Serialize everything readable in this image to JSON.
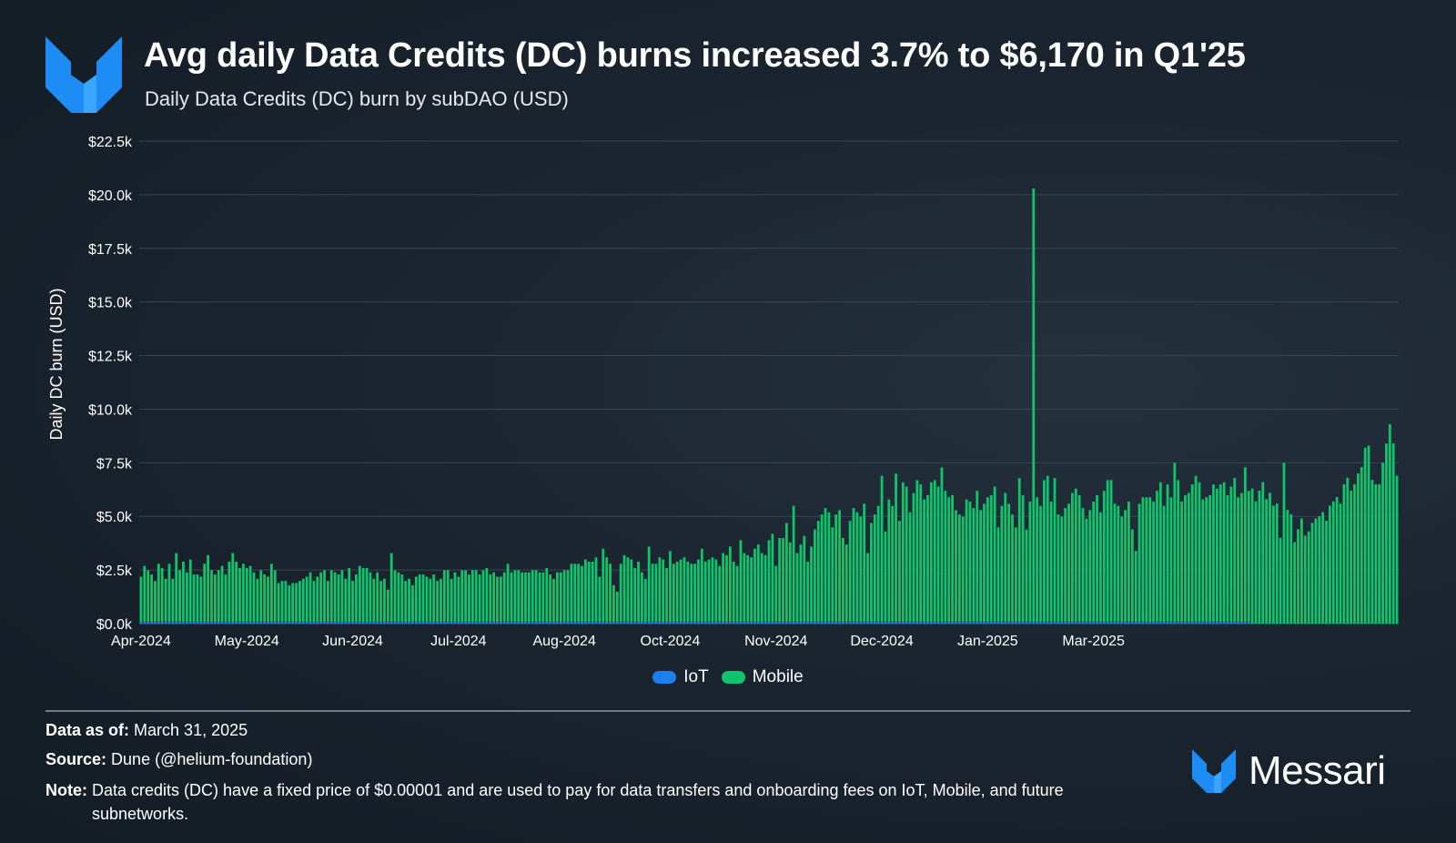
{
  "header": {
    "title": "Avg daily Data Credits (DC) burns increased 3.7% to $6,170 in Q1'25",
    "subtitle": "Daily Data Credits (DC) burn by subDAO (USD)"
  },
  "colors": {
    "mobile": "#10c46c",
    "iot": "#1e7ff0",
    "brand_blue": "#1e8cf5",
    "grid": "#3a4651"
  },
  "icons": {
    "logo": "messari-logo-icon"
  },
  "chart_data": {
    "type": "bar",
    "stacked": true,
    "ylabel": "Daily DC burn (USD)",
    "ylim": [
      0,
      22500
    ],
    "y_ticks": [
      0,
      2500,
      5000,
      7500,
      10000,
      12500,
      15000,
      17500,
      20000,
      22500
    ],
    "y_tick_labels": [
      "$0.0k",
      "$2.5k",
      "$5.0k",
      "$7.5k",
      "$10.0k",
      "$12.5k",
      "$15.0k",
      "$17.5k",
      "$20.0k",
      "$22.5k"
    ],
    "x_tick_labels": [
      "Apr-2024",
      "May-2024",
      "Jun-2024",
      "Jul-2024",
      "Aug-2024",
      "Oct-2024",
      "Nov-2024",
      "Dec-2024",
      "Jan-2025",
      "Mar-2025"
    ],
    "x_tick_day_index": [
      0,
      30,
      60,
      90,
      120,
      150,
      180,
      210,
      240,
      270
    ],
    "legend": [
      "IoT",
      "Mobile"
    ],
    "legend_position": "bottom-center",
    "grid": true,
    "start_date": "2024-04-01",
    "series": [
      {
        "name": "IoT",
        "values": [
          90,
          90,
          90,
          90,
          90,
          90,
          90,
          90,
          90,
          90,
          90,
          90,
          90,
          90,
          90,
          90,
          90,
          90,
          90,
          90,
          90,
          90,
          90,
          90,
          90,
          90,
          90,
          90,
          90,
          90,
          90,
          90,
          90,
          90,
          90,
          90,
          90,
          90,
          90,
          90,
          90,
          90,
          90,
          90,
          90,
          90,
          90,
          90,
          90,
          90,
          90,
          90,
          90,
          90,
          90,
          90,
          90,
          90,
          90,
          90,
          90,
          90,
          90,
          90,
          90,
          90,
          90,
          90,
          90,
          90,
          90,
          90,
          90,
          90,
          90,
          90,
          90,
          90,
          90,
          90,
          90,
          90,
          90,
          90,
          90,
          90,
          90,
          90,
          90,
          90,
          90,
          90,
          90,
          90,
          90,
          90,
          90,
          90,
          90,
          90,
          90,
          90,
          90,
          90,
          90,
          90,
          90,
          90,
          90,
          90,
          90,
          90,
          90,
          90,
          90,
          90,
          90,
          90,
          90,
          90,
          90,
          90,
          90,
          90,
          90,
          90,
          90,
          90,
          90,
          90,
          90,
          90,
          90,
          90,
          90,
          90,
          90,
          90,
          90,
          90,
          90,
          90,
          90,
          90,
          90,
          90,
          90,
          90,
          90,
          90,
          90,
          90,
          90,
          90,
          90,
          90,
          90,
          90,
          90,
          90,
          90,
          90,
          90,
          90,
          90,
          90,
          90,
          90,
          90,
          90,
          90,
          90,
          90,
          90,
          90,
          90,
          90,
          90,
          90,
          90,
          90,
          90,
          90,
          90,
          90,
          90,
          90,
          90,
          90,
          90,
          90,
          90,
          90,
          90,
          90,
          90,
          90,
          90,
          90,
          90,
          90,
          90,
          90,
          90,
          90,
          90,
          90,
          90,
          90,
          90,
          90,
          90,
          90,
          90,
          90,
          90,
          90,
          90,
          90,
          90,
          90,
          90,
          90,
          90,
          90,
          90,
          90,
          90,
          90,
          90,
          90,
          90,
          90,
          90,
          90,
          90,
          90,
          90,
          90,
          90,
          90,
          90,
          90,
          90,
          90,
          90,
          90,
          90,
          90,
          90,
          90,
          90,
          90,
          90,
          90,
          90,
          90,
          90,
          90,
          90,
          90,
          90,
          90,
          90,
          90,
          90,
          90,
          90,
          90,
          90,
          90,
          90,
          90,
          90,
          90,
          90,
          90,
          90,
          90,
          90,
          90,
          90,
          90,
          90,
          90,
          90,
          90,
          90,
          90,
          90,
          90,
          90,
          90,
          90,
          90,
          90,
          90,
          90,
          90,
          90,
          90,
          90,
          90,
          90,
          90,
          90,
          90,
          90,
          90,
          90,
          90,
          90,
          90,
          90,
          90
        ]
      },
      {
        "name": "Mobile",
        "values": [
          2100,
          2600,
          2400,
          2200,
          1900,
          2700,
          2500,
          2000,
          2700,
          2000,
          3200,
          2400,
          2800,
          2300,
          2900,
          2200,
          2200,
          2100,
          2700,
          3100,
          2400,
          2200,
          2400,
          2600,
          2200,
          2800,
          3200,
          2800,
          2500,
          2700,
          2500,
          2600,
          2300,
          2000,
          2400,
          2200,
          2100,
          2700,
          2400,
          1800,
          1900,
          1900,
          1700,
          1800,
          1800,
          1900,
          2000,
          2100,
          2300,
          1900,
          2100,
          2300,
          2400,
          1900,
          2400,
          2300,
          2200,
          2400,
          2000,
          2500,
          1900,
          2200,
          2600,
          2500,
          2500,
          2300,
          2000,
          2300,
          1900,
          2000,
          1500,
          3200,
          2400,
          2300,
          2200,
          1900,
          2000,
          1700,
          2100,
          2200,
          2200,
          2100,
          2000,
          2200,
          1900,
          2000,
          2400,
          2400,
          2000,
          2300,
          2100,
          2400,
          2400,
          2200,
          2400,
          2400,
          2200,
          2400,
          2500,
          2200,
          2300,
          2100,
          2100,
          2300,
          2700,
          2300,
          2400,
          2400,
          2300,
          2300,
          2300,
          2400,
          2400,
          2300,
          2300,
          2500,
          2200,
          2000,
          2300,
          2300,
          2400,
          2400,
          2700,
          2700,
          2700,
          2600,
          2900,
          2800,
          2800,
          3000,
          2100,
          3400,
          3000,
          2700,
          1700,
          1400,
          2700,
          3100,
          3000,
          2900,
          2500,
          2800,
          2300,
          2000,
          3500,
          2700,
          2700,
          3000,
          2900,
          2500,
          3300,
          2700,
          2800,
          2900,
          3000,
          2800,
          2700,
          2700,
          2900,
          3400,
          2800,
          2900,
          3000,
          2900,
          2600,
          3200,
          3100,
          3500,
          2800,
          2600,
          3800,
          3200,
          3100,
          3000,
          3400,
          3600,
          3200,
          3100,
          3800,
          4100,
          2600,
          3900,
          3900,
          4600,
          3700,
          5400,
          3200,
          3600,
          4000,
          2800,
          3500,
          4300,
          4700,
          5000,
          5300,
          5100,
          4400,
          5000,
          5200,
          3900,
          3600,
          4700,
          5300,
          5100,
          4900,
          5500,
          3200,
          4600,
          5000,
          5400,
          6800,
          4200,
          5700,
          5400,
          6900,
          4700,
          6500,
          6300,
          5100,
          6000,
          6600,
          6400,
          5700,
          5900,
          6500,
          6600,
          6300,
          7200,
          6100,
          5800,
          5900,
          5200,
          5000,
          4900,
          5700,
          5600,
          5300,
          6100,
          5200,
          5500,
          5800,
          5900,
          6300,
          4400,
          5400,
          6000,
          5500,
          5000,
          4400,
          6700,
          5900,
          4300,
          5600,
          20200,
          5800,
          5400,
          6600,
          6800,
          5600,
          6700,
          5000,
          4900,
          5300,
          5500,
          6000,
          6200,
          5900,
          5300,
          4800,
          5200,
          5600,
          5900,
          5100,
          6100,
          6600,
          6600,
          5500,
          5400,
          4900,
          5200,
          5600,
          4300,
          3300,
          5500,
          5800,
          5800,
          5800,
          5600,
          6100,
          6500,
          5400,
          6400,
          5800,
          7400,
          6600,
          5600,
          5900,
          6000,
          6400,
          6800,
          6500,
          5700,
          5800,
          5900,
          6400,
          6200,
          6400,
          6500,
          5900,
          6300,
          6700,
          5800,
          6000,
          7200,
          6100,
          6300,
          5700,
          6200,
          6600,
          5800,
          6100,
          5500,
          5600,
          4000,
          7500,
          5300,
          5100,
          3800,
          4400,
          4900,
          4100,
          4300,
          4700,
          4900,
          5000,
          5200,
          4800,
          5500,
          5700,
          5900,
          5600,
          6500,
          6800,
          6200,
          6500,
          7000,
          7300,
          8200,
          8300,
          6700,
          6500,
          6500,
          7500,
          8400,
          9300,
          8400,
          6900
        ]
      }
    ]
  },
  "footer": {
    "data_label": "Data as of:",
    "data_value": "March 31, 2025",
    "source_label": "Source:",
    "source_value": "Dune (@helium-foundation)",
    "note_label": "Note:",
    "note_value": "Data credits (DC) have a fixed price of $0.00001 and are used to pay for data transfers and onboarding fees on IoT, Mobile, and future subnetworks.",
    "brand_name": "Messari"
  }
}
